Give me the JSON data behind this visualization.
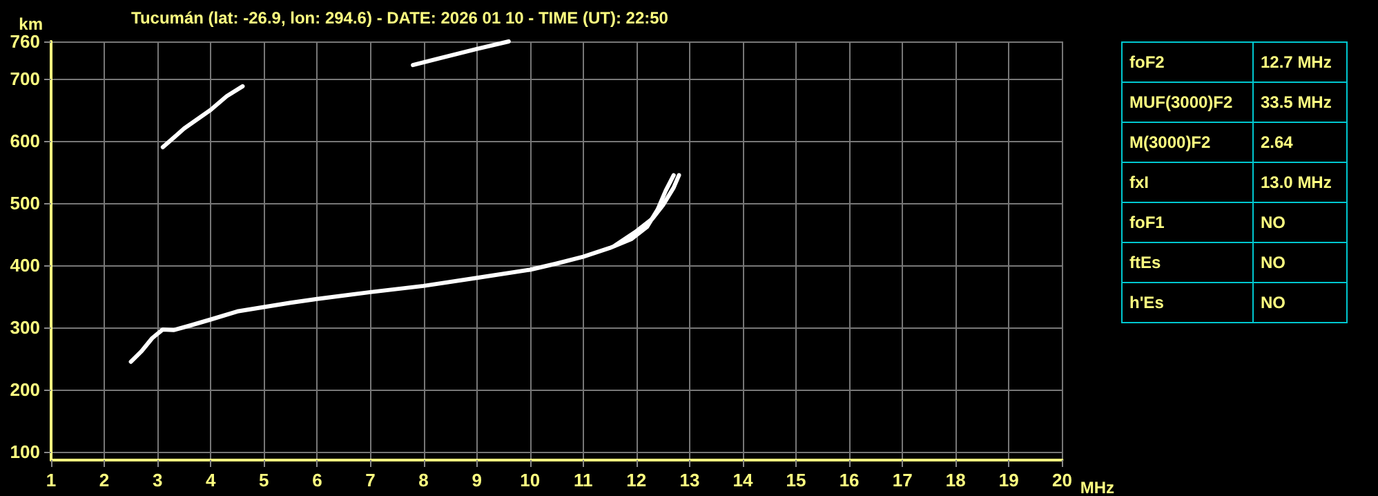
{
  "chart_data": [
    {
      "type": "line",
      "title": "Tucumán (lat: -26.9, lon: 294.6) - DATE: 2026 01 10 - TIME (UT): 22:50",
      "xlabel": "MHz",
      "ylabel": "km",
      "xlim": [
        1,
        20
      ],
      "xticks": [
        1,
        2,
        3,
        4,
        5,
        6,
        7,
        8,
        9,
        10,
        11,
        12,
        13,
        14,
        15,
        16,
        17,
        18,
        19,
        20
      ],
      "ylim": [
        87,
        760
      ],
      "yticks": [
        100,
        200,
        300,
        400,
        500,
        600,
        700,
        760
      ],
      "grid": true,
      "marker": "none",
      "line_style": "solid",
      "series": [
        {
          "color": "#ffffff",
          "x": [
            2.5,
            2.7,
            2.9,
            3.1,
            3.3,
            3.6,
            4,
            4.5,
            5,
            5.5,
            6,
            7,
            8,
            9,
            10,
            10.5,
            11,
            11.5,
            11.9,
            12.2,
            12.4,
            12.55,
            12.7
          ],
          "values": [
            245,
            262,
            283,
            297,
            296,
            303,
            313,
            326,
            333,
            340,
            346,
            357,
            367,
            380,
            393,
            403,
            414,
            428,
            442,
            462,
            490,
            520,
            545
          ]
        },
        {
          "color": "#ffffff",
          "x": [
            11.6,
            12,
            12.3,
            12.5,
            12.7,
            12.8
          ],
          "values": [
            432,
            455,
            475,
            497,
            525,
            545
          ]
        },
        {
          "color": "#ffffff",
          "x": [
            3.1,
            3.5,
            4,
            4.3,
            4.6
          ],
          "values": [
            590,
            620,
            650,
            672,
            688
          ]
        },
        {
          "color": "#ffffff",
          "x": [
            7.8,
            8.3,
            9,
            9.6
          ],
          "values": [
            722,
            733,
            748,
            760
          ]
        }
      ]
    },
    {
      "type": "other",
      "annotations": [
        "foF2",
        "12.7 MHz",
        "MUF(3000)F2",
        "33.5 MHz",
        "M(3000)F2",
        "2.64",
        "fxI",
        "13.0 MHz",
        "foF1",
        "NO",
        "ftEs",
        "NO",
        "h'Es",
        "NO"
      ]
    }
  ]
}
